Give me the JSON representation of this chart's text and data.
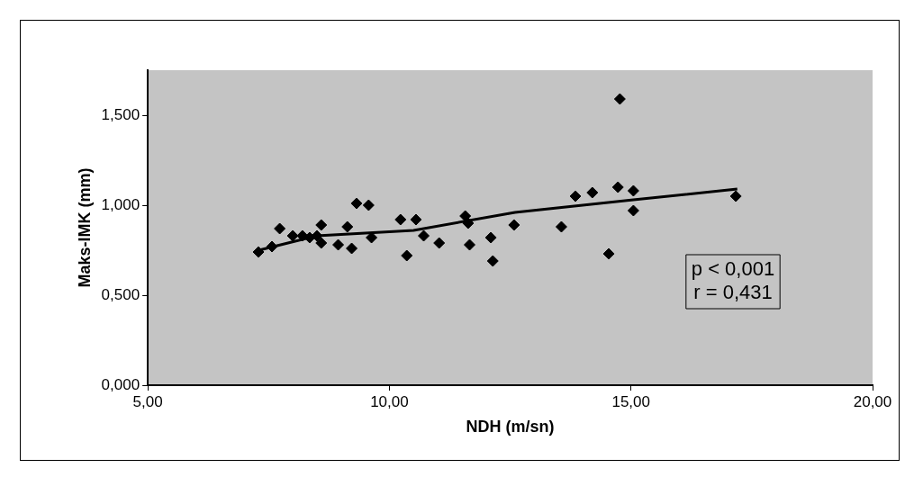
{
  "chart_data": {
    "type": "scatter",
    "xlabel": "NDH (m/sn)",
    "ylabel": "Maks-IMK (mm)",
    "xlim": [
      5,
      20
    ],
    "xticks": [
      {
        "value": 5,
        "label": "5,00"
      },
      {
        "value": 10,
        "label": "10,00"
      },
      {
        "value": 15,
        "label": "15,00"
      },
      {
        "value": 20,
        "label": "20,00"
      }
    ],
    "ylim": [
      0,
      1.75
    ],
    "yticks": [
      {
        "value": 0,
        "label": "0,000"
      },
      {
        "value": 0.5,
        "label": "0,500"
      },
      {
        "value": 1,
        "label": "1,000"
      },
      {
        "value": 1.5,
        "label": "1,500"
      }
    ],
    "grid": false,
    "legend": false,
    "series": [
      {
        "marker": "diamond",
        "color": "#000000",
        "x": [
          7.29,
          7.57,
          7.73,
          8.0,
          8.2,
          8.35,
          8.5,
          8.59,
          8.59,
          8.94,
          9.13,
          9.22,
          9.32,
          9.57,
          9.63,
          10.23,
          10.36,
          10.55,
          10.71,
          11.03,
          11.57,
          11.63,
          11.66,
          12.1,
          12.14,
          12.58,
          13.56,
          13.85,
          14.2,
          14.54,
          14.73,
          14.77,
          15.05,
          15.05,
          17.17
        ],
        "values": [
          0.74,
          0.77,
          0.87,
          0.83,
          0.83,
          0.82,
          0.83,
          0.89,
          0.79,
          0.78,
          0.88,
          0.76,
          1.01,
          1.0,
          0.82,
          0.92,
          0.72,
          0.92,
          0.83,
          0.79,
          0.94,
          0.9,
          0.78,
          0.82,
          0.69,
          0.89,
          0.88,
          1.05,
          1.07,
          0.73,
          1.1,
          1.59,
          1.08,
          0.97,
          1.05
        ]
      },
      {
        "type": "line",
        "marker": "none",
        "color": "#000000",
        "x": [
          7.3,
          8.5,
          10.5,
          12.6,
          15.05,
          17.2
        ],
        "values": [
          0.75,
          0.83,
          0.86,
          0.96,
          1.03,
          1.09
        ]
      }
    ],
    "annotations": [
      "p < 0,001\nr = 0,431"
    ]
  }
}
